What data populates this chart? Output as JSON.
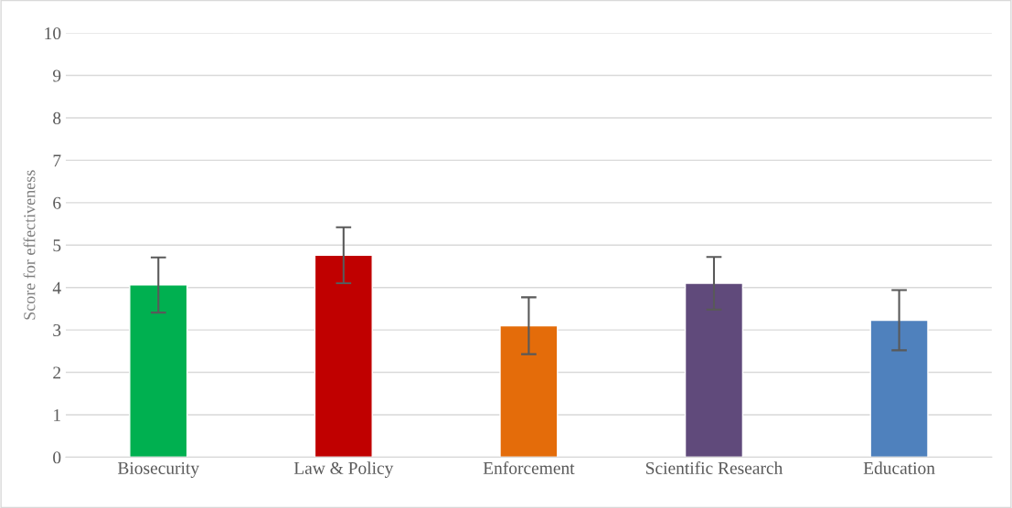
{
  "chart_data": {
    "type": "bar",
    "ylabel": "Score for effectiveness",
    "categories": [
      "Biosecurity",
      "Law & Policy",
      "Enforcement",
      "Scientific Research",
      "Education"
    ],
    "values": [
      4.06,
      4.76,
      3.1,
      4.1,
      3.23
    ],
    "errors": [
      0.65,
      0.66,
      0.67,
      0.62,
      0.71
    ],
    "colors": [
      "#00b050",
      "#c00000",
      "#e46c0a",
      "#604a7b",
      "#4f81bd"
    ],
    "ylim": [
      0,
      10
    ],
    "yticks": [
      0,
      1,
      2,
      3,
      4,
      5,
      6,
      7,
      8,
      9,
      10
    ],
    "grid": "y",
    "legend": false
  }
}
